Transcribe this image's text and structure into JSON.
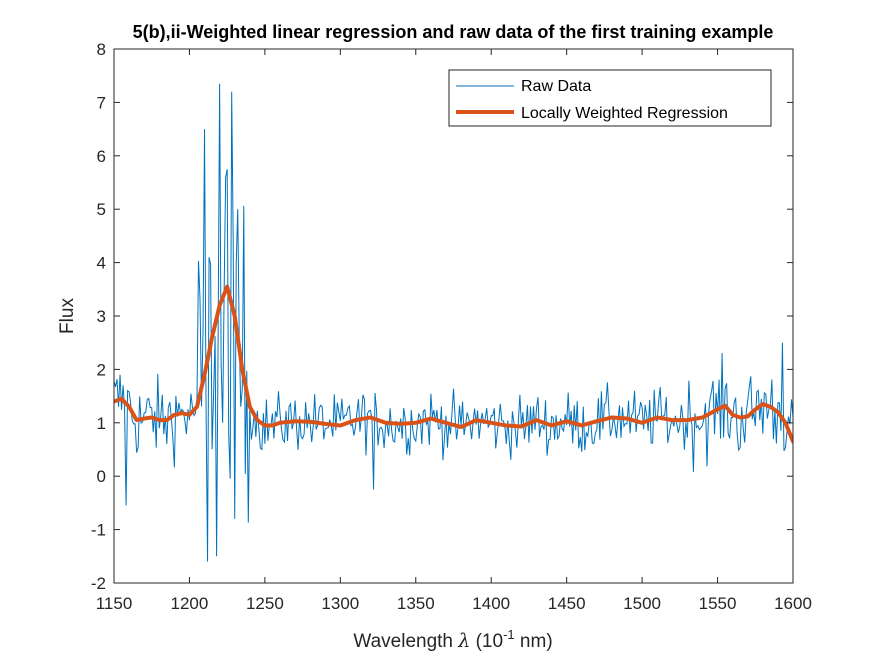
{
  "chart_data": {
    "type": "line",
    "title": "5(b),ii-Weighted linear regression and raw data of the first training example",
    "xlabel_prefix": "Wavelength ",
    "xlabel_symbol": "λ",
    "xlabel_unit_open": " (10",
    "xlabel_unit_exp": "-1",
    "xlabel_unit_close": " nm)",
    "ylabel": "Flux",
    "xlim": [
      1150,
      1600
    ],
    "ylim": [
      -2,
      8
    ],
    "xticks": [
      1150,
      1200,
      1250,
      1300,
      1350,
      1400,
      1450,
      1500,
      1550,
      1600
    ],
    "yticks": [
      -2,
      -1,
      0,
      1,
      2,
      3,
      4,
      5,
      6,
      7,
      8
    ],
    "legend_position": "top-right",
    "grid": false,
    "colors": {
      "raw": "#0072BD",
      "smooth": "#D95319",
      "axis": "#262626"
    },
    "series": [
      {
        "name": "Raw Data",
        "style": "thin"
      },
      {
        "name": "Locally Weighted Regression",
        "style": "thick",
        "x": [
          1150,
          1155,
          1160,
          1165,
          1170,
          1175,
          1180,
          1185,
          1190,
          1195,
          1200,
          1205,
          1210,
          1215,
          1220,
          1225,
          1230,
          1235,
          1240,
          1245,
          1250,
          1255,
          1260,
          1270,
          1280,
          1290,
          1300,
          1310,
          1320,
          1330,
          1340,
          1350,
          1360,
          1370,
          1380,
          1390,
          1400,
          1410,
          1420,
          1430,
          1440,
          1450,
          1460,
          1470,
          1480,
          1490,
          1500,
          1510,
          1520,
          1530,
          1540,
          1550,
          1555,
          1560,
          1565,
          1570,
          1575,
          1580,
          1585,
          1590,
          1595,
          1600
        ],
        "y": [
          1.4,
          1.45,
          1.3,
          1.05,
          1.08,
          1.1,
          1.05,
          1.05,
          1.15,
          1.18,
          1.15,
          1.3,
          1.9,
          2.6,
          3.2,
          3.55,
          3.0,
          2.0,
          1.3,
          1.05,
          0.95,
          0.95,
          1.0,
          1.03,
          1.02,
          0.98,
          0.95,
          1.05,
          1.1,
          1.0,
          0.98,
          1.0,
          1.08,
          1.0,
          0.92,
          1.05,
          1.0,
          0.95,
          0.93,
          1.05,
          0.95,
          1.03,
          0.95,
          1.03,
          1.1,
          1.08,
          1.0,
          1.1,
          1.05,
          1.05,
          1.1,
          1.25,
          1.32,
          1.15,
          1.1,
          1.12,
          1.25,
          1.35,
          1.3,
          1.2,
          1.0,
          0.65
        ]
      }
    ]
  }
}
